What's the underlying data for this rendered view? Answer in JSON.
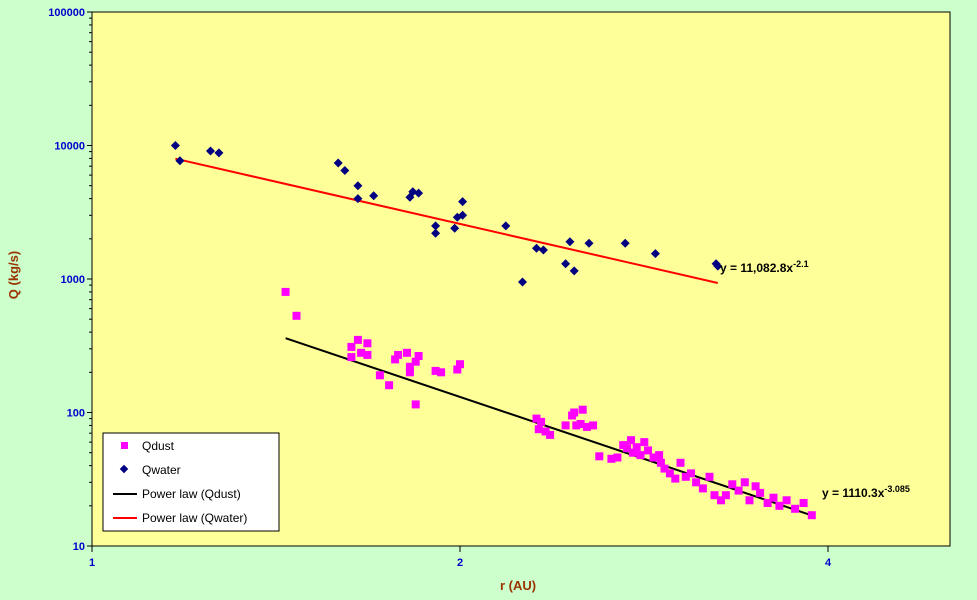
{
  "chart_data": {
    "type": "scatter",
    "title": "",
    "xlabel": "r (AU)",
    "ylabel": "Q (kg/s)",
    "x_scale": "log",
    "y_scale": "log",
    "xlim": [
      1,
      5
    ],
    "ylim": [
      10,
      100000
    ],
    "x_ticks": [
      "1",
      "2",
      "4"
    ],
    "y_ticks": [
      "10",
      "100",
      "1000",
      "10000",
      "100000"
    ],
    "grid": false,
    "legend_position": "bottom-left",
    "colors": {
      "plot_background": "#ffff99",
      "page_background": "#ccffcc",
      "qdust": "#ff00ff",
      "qwater": "#000080",
      "fit_dust": "#000000",
      "fit_water": "#ff0000",
      "tick_text": "#0000cc",
      "axis_label": "#993300"
    },
    "series": [
      {
        "name": "Qdust",
        "kind": "points",
        "marker": "square",
        "points": [
          [
            1.44,
            800
          ],
          [
            1.47,
            530
          ],
          [
            1.63,
            310
          ],
          [
            1.63,
            260
          ],
          [
            1.65,
            350
          ],
          [
            1.66,
            280
          ],
          [
            1.68,
            270
          ],
          [
            1.68,
            330
          ],
          [
            1.72,
            190
          ],
          [
            1.75,
            160
          ],
          [
            1.77,
            250
          ],
          [
            1.78,
            270
          ],
          [
            1.81,
            280
          ],
          [
            1.82,
            220
          ],
          [
            1.82,
            200
          ],
          [
            1.84,
            240
          ],
          [
            1.84,
            115
          ],
          [
            1.85,
            265
          ],
          [
            1.91,
            205
          ],
          [
            1.93,
            200
          ],
          [
            1.99,
            210
          ],
          [
            2.0,
            230
          ],
          [
            2.31,
            90
          ],
          [
            2.32,
            75
          ],
          [
            2.33,
            85
          ],
          [
            2.35,
            72
          ],
          [
            2.37,
            68
          ],
          [
            2.44,
            80
          ],
          [
            2.47,
            95
          ],
          [
            2.48,
            100
          ],
          [
            2.49,
            80
          ],
          [
            2.51,
            82
          ],
          [
            2.52,
            105
          ],
          [
            2.54,
            78
          ],
          [
            2.57,
            80
          ],
          [
            2.6,
            47
          ],
          [
            2.66,
            45
          ],
          [
            2.69,
            46
          ],
          [
            2.72,
            57
          ],
          [
            2.74,
            54
          ],
          [
            2.76,
            62
          ],
          [
            2.77,
            50
          ],
          [
            2.79,
            55
          ],
          [
            2.81,
            48
          ],
          [
            2.83,
            60
          ],
          [
            2.85,
            52
          ],
          [
            2.88,
            46
          ],
          [
            2.91,
            48
          ],
          [
            2.92,
            42
          ],
          [
            2.94,
            38
          ],
          [
            2.97,
            35
          ],
          [
            3.0,
            32
          ],
          [
            3.03,
            42
          ],
          [
            3.06,
            33
          ],
          [
            3.09,
            35
          ],
          [
            3.12,
            30
          ],
          [
            3.16,
            27
          ],
          [
            3.2,
            33
          ],
          [
            3.23,
            24
          ],
          [
            3.27,
            22
          ],
          [
            3.3,
            24
          ],
          [
            3.34,
            29
          ],
          [
            3.38,
            26
          ],
          [
            3.42,
            30
          ],
          [
            3.45,
            22
          ],
          [
            3.49,
            28
          ],
          [
            3.52,
            25
          ],
          [
            3.57,
            21
          ],
          [
            3.61,
            23
          ],
          [
            3.65,
            20
          ],
          [
            3.7,
            22
          ],
          [
            3.76,
            19
          ],
          [
            3.82,
            21
          ],
          [
            3.88,
            17
          ]
        ]
      },
      {
        "name": "Qwater",
        "kind": "points",
        "marker": "diamond",
        "points": [
          [
            1.17,
            10000
          ],
          [
            1.18,
            7700
          ],
          [
            1.25,
            9100
          ],
          [
            1.27,
            8800
          ],
          [
            1.59,
            7400
          ],
          [
            1.61,
            6500
          ],
          [
            1.65,
            5000
          ],
          [
            1.65,
            4000
          ],
          [
            1.7,
            4200
          ],
          [
            1.82,
            4100
          ],
          [
            1.83,
            4500
          ],
          [
            1.85,
            4400
          ],
          [
            1.91,
            2500
          ],
          [
            1.91,
            2200
          ],
          [
            1.98,
            2400
          ],
          [
            1.99,
            2900
          ],
          [
            2.01,
            3000
          ],
          [
            2.01,
            3800
          ],
          [
            2.18,
            2500
          ],
          [
            2.25,
            950
          ],
          [
            2.31,
            1700
          ],
          [
            2.34,
            1650
          ],
          [
            2.44,
            1300
          ],
          [
            2.46,
            1900
          ],
          [
            2.48,
            1150
          ],
          [
            2.55,
            1850
          ],
          [
            2.73,
            1850
          ],
          [
            2.89,
            1550
          ],
          [
            3.24,
            1300
          ],
          [
            3.25,
            1250
          ]
        ]
      },
      {
        "name": "Power law (Qdust)",
        "kind": "fit",
        "equation": "y = 1110.3x^-3.085",
        "coefficient": 1110.3,
        "exponent": -3.085,
        "x_range": [
          1.44,
          3.88
        ]
      },
      {
        "name": "Power law (Qwater)",
        "kind": "fit",
        "equation": "y = 11,082.8x^-2.1",
        "coefficient": 11082.8,
        "exponent": -2.1,
        "x_range": [
          1.17,
          3.25
        ]
      }
    ],
    "annotations": {
      "water_eq_main": "y = 11,082.8x",
      "water_eq_exp": "-2.1",
      "dust_eq_main": "y = 1110.3x",
      "dust_eq_exp": "-3.085"
    }
  }
}
